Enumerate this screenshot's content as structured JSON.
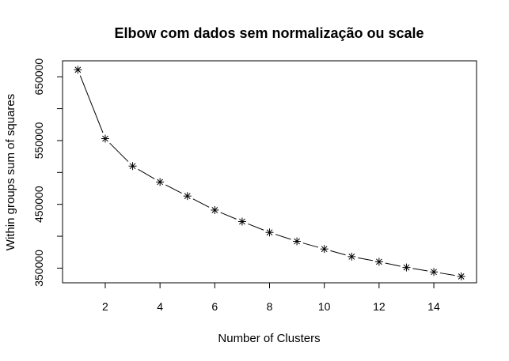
{
  "chart_data": {
    "type": "line",
    "title": "Elbow com dados sem normalização ou scale",
    "xlabel": "Number of Clusters",
    "ylabel": "Within groups sum of squares",
    "x": [
      1,
      2,
      3,
      4,
      5,
      6,
      7,
      8,
      9,
      10,
      11,
      12,
      13,
      14,
      15
    ],
    "series": [
      {
        "values": [
          661000,
          553000,
          510000,
          485000,
          463000,
          441000,
          423000,
          406000,
          392000,
          380000,
          368000,
          360000,
          351000,
          344000,
          337000
        ]
      }
    ],
    "xlim": [
      0.44,
      15.56
    ],
    "ylim": [
      327000,
      675000
    ],
    "xticks": [
      2,
      4,
      6,
      8,
      10,
      12,
      14
    ],
    "xtick_labels": [
      "2",
      "4",
      "6",
      "8",
      "10",
      "12",
      "14"
    ],
    "yticks": [
      350000,
      400000,
      450000,
      500000,
      550000,
      600000,
      650000
    ],
    "ytick_labels": [
      "350000",
      "",
      "450000",
      "",
      "550000",
      "",
      "650000"
    ],
    "marker": "asterisk",
    "grid": false,
    "colors": {
      "line": "#000000",
      "marker": "#000000",
      "axis": "#000000",
      "background": "#ffffff"
    }
  }
}
